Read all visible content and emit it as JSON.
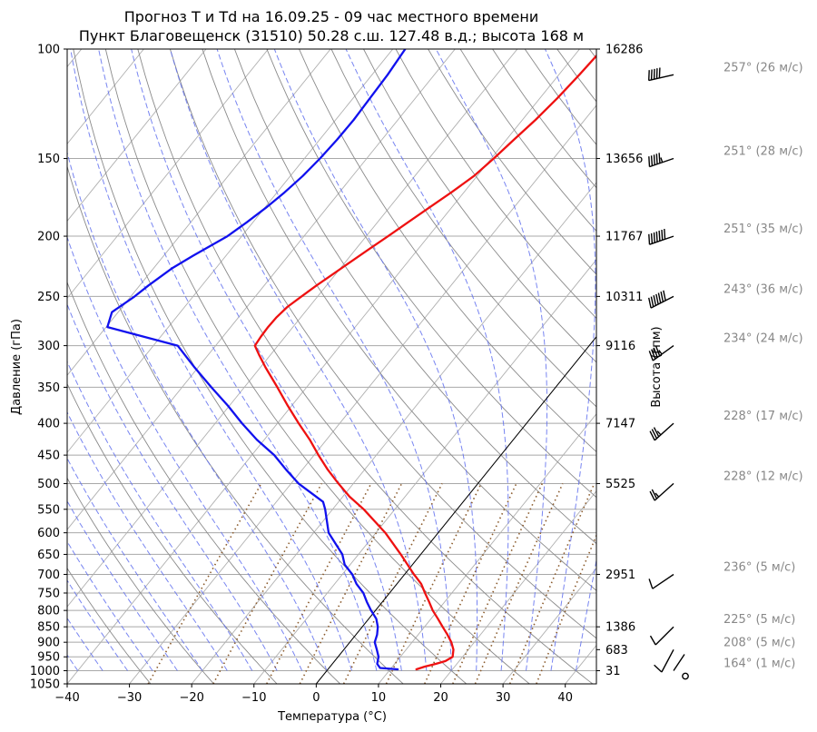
{
  "chart_data": {
    "type": "line",
    "title": "Прогноз T и Td на 16.09.25 - 09 час местного времени",
    "subtitle": "Пункт Благовещенск (31510) 50.28 с.ш. 127.48 в.д.; высота 168 м",
    "xlabel": "Температура (°C)",
    "ylabel": "Давление (гПа)",
    "ylabel_right": "Высота (гпм)",
    "xlim": [
      -40,
      45
    ],
    "ylim": [
      1050,
      100
    ],
    "y_scale": "log",
    "grid": true,
    "x_ticks": [
      "−40",
      "−30",
      "−20",
      "−10",
      "0",
      "10",
      "20",
      "30",
      "40"
    ],
    "y_ticks": [
      100,
      150,
      200,
      250,
      300,
      350,
      400,
      450,
      500,
      550,
      600,
      650,
      700,
      750,
      800,
      850,
      900,
      950,
      1000,
      1050
    ],
    "height_labels": [
      {
        "p": 100,
        "label": "16286"
      },
      {
        "p": 150,
        "label": "13656"
      },
      {
        "p": 200,
        "label": "11767"
      },
      {
        "p": 250,
        "label": "10311"
      },
      {
        "p": 300,
        "label": "9116"
      },
      {
        "p": 400,
        "label": "7147"
      },
      {
        "p": 500,
        "label": "5525"
      },
      {
        "p": 700,
        "label": "2951"
      },
      {
        "p": 850,
        "label": "1386"
      },
      {
        "p": 925,
        "label": "683"
      },
      {
        "p": 1000,
        "label": "31"
      }
    ],
    "series": [
      {
        "color": "#ee1111",
        "p": [
          995,
          985,
          975,
          965,
          950,
          925,
          900,
          875,
          850,
          825,
          800,
          775,
          750,
          725,
          705,
          700,
          650,
          600,
          550,
          525,
          500,
          475,
          450,
          425,
          400,
          375,
          350,
          325,
          310,
          300,
          290,
          280,
          270,
          260,
          250,
          240,
          230,
          220,
          210,
          200,
          190,
          180,
          170,
          160,
          150,
          140,
          130,
          120,
          110,
          100,
          95
        ],
        "values": [
          14.2,
          15.2,
          16.6,
          17.8,
          18.4,
          17.6,
          16.3,
          14.7,
          12.9,
          11.1,
          9.2,
          7.5,
          5.7,
          3.9,
          2.0,
          1.5,
          -3.2,
          -8.5,
          -15.0,
          -18.9,
          -22.4,
          -25.9,
          -29.3,
          -32.7,
          -36.6,
          -40.6,
          -44.7,
          -49.2,
          -51.9,
          -53.7,
          -53.9,
          -54.0,
          -53.9,
          -53.5,
          -52.6,
          -51.6,
          -50.4,
          -49.2,
          -47.9,
          -46.5,
          -45.1,
          -43.6,
          -42.0,
          -40.5,
          -39.6,
          -38.8,
          -37.9,
          -37.2,
          -36.7,
          -36.3,
          -35.9
        ]
      },
      {
        "color": "#1111ee",
        "p": [
          995,
          990,
          975,
          950,
          925,
          900,
          875,
          850,
          825,
          800,
          775,
          750,
          725,
          700,
          675,
          650,
          600,
          550,
          535,
          500,
          475,
          450,
          425,
          400,
          375,
          350,
          325,
          300,
          280,
          265,
          250,
          240,
          225,
          215,
          200,
          190,
          180,
          170,
          160,
          150,
          140,
          130,
          120,
          110,
          100
        ],
        "values": [
          11.2,
          8.2,
          7.2,
          6.5,
          5.3,
          4.0,
          3.4,
          2.5,
          1.2,
          -0.7,
          -2.5,
          -4.2,
          -6.5,
          -8.4,
          -10.9,
          -12.6,
          -17.6,
          -21.2,
          -22.5,
          -28.8,
          -32.6,
          -36.4,
          -41.2,
          -45.7,
          -50.2,
          -55.3,
          -60.6,
          -66.1,
          -79.8,
          -81.0,
          -79.4,
          -78.6,
          -77.0,
          -75.3,
          -72.3,
          -71.0,
          -69.8,
          -68.8,
          -68.0,
          -67.5,
          -67.2,
          -67.1,
          -67.3,
          -67.5,
          -68.0
        ]
      }
    ],
    "wind_labels": [
      {
        "p": 110,
        "text": "257° (26 м/с)"
      },
      {
        "p": 150,
        "text": "251° (28 м/с)"
      },
      {
        "p": 200,
        "text": "251° (35 м/с)"
      },
      {
        "p": 250,
        "text": "243° (36 м/с)"
      },
      {
        "p": 300,
        "text": "234° (24 м/с)"
      },
      {
        "p": 400,
        "text": "228° (17 м/с)"
      },
      {
        "p": 500,
        "text": "228° (12 м/с)"
      },
      {
        "p": 700,
        "text": "236° (5 м/с)"
      },
      {
        "p": 850,
        "text": "225° (5 м/с)"
      },
      {
        "p": 925,
        "text": "208° (5 м/с)"
      },
      {
        "p": 1000,
        "text": "164° (1 м/с)"
      }
    ]
  }
}
